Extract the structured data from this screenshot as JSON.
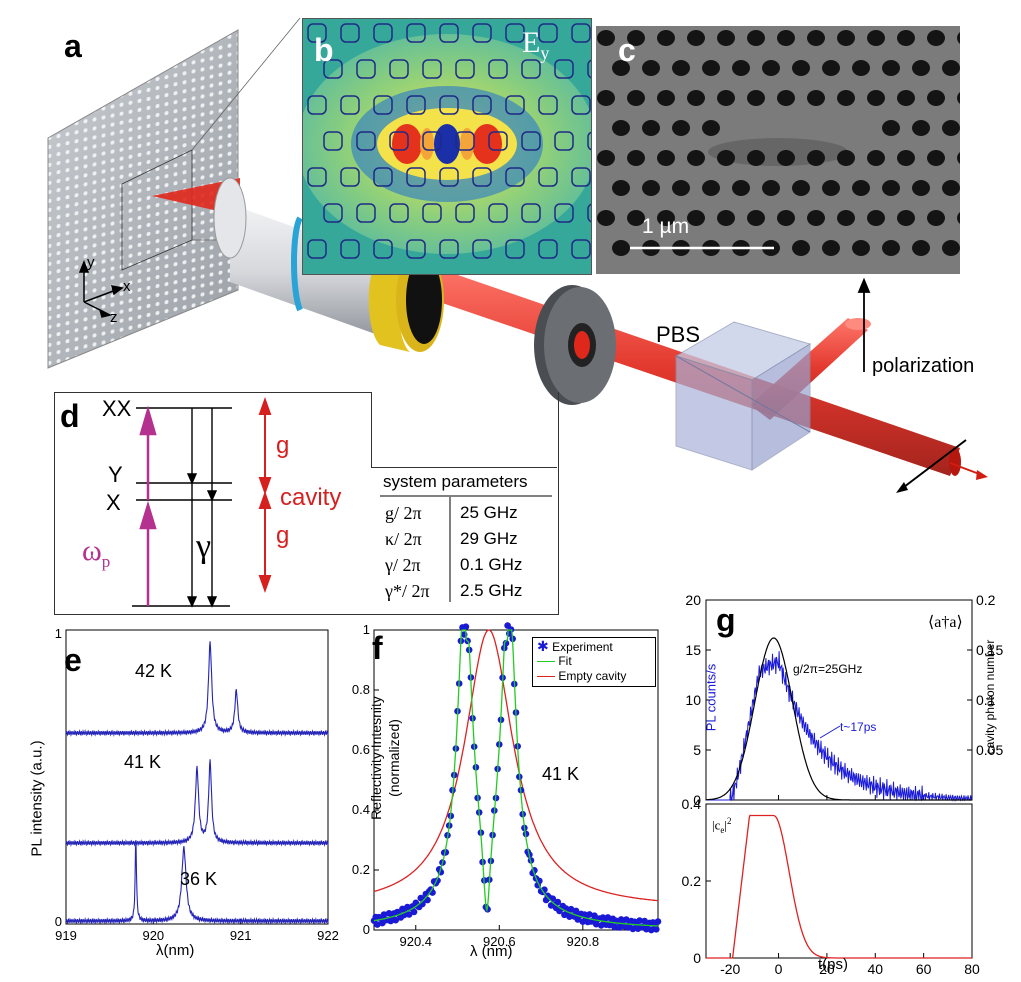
{
  "panel_labels": {
    "a": "a",
    "b": "b",
    "c": "c",
    "d": "d",
    "e": "e",
    "f": "f",
    "g": "g"
  },
  "panel_a": {
    "axis_y": "y",
    "axis_x": "x",
    "axis_z": "z",
    "pbs_label": "PBS",
    "polarization_label": "polarization"
  },
  "panel_b": {
    "field_label": "E",
    "field_subscript": "y"
  },
  "panel_c": {
    "scalebar_label": "1 µm"
  },
  "panel_d": {
    "levels": [
      "XX",
      "Y",
      "X"
    ],
    "pump_label": "ω",
    "pump_subscript": "p",
    "decay_label": "γ",
    "coupling_label": "g",
    "cavity_label": "cavity",
    "table_title": "system parameters",
    "table_rows": [
      {
        "param": "g/ 2π",
        "value": "25  GHz"
      },
      {
        "param": "κ/ 2π",
        "value": "29  GHz"
      },
      {
        "param": "γ/ 2π",
        "value": "0.1  GHz"
      },
      {
        "param": "γ*/ 2π",
        "value": "2.5 GHz"
      }
    ]
  },
  "chart_data": [
    {
      "panel": "e",
      "type": "line",
      "xlabel": "λ(nm)",
      "ylabel": "PL intensity (a.u.)",
      "xlim": [
        919,
        922
      ],
      "x_ticks": [
        "919",
        "920",
        "921",
        "922"
      ],
      "y_ticks": [
        "0",
        "1"
      ],
      "series": [
        {
          "name": "42 K",
          "peaks": [
            {
              "x": 920.65,
              "height": 0.95,
              "width": 0.045
            },
            {
              "x": 920.95,
              "height": 0.45,
              "width": 0.04
            }
          ]
        },
        {
          "name": "41 K",
          "peaks": [
            {
              "x": 920.5,
              "height": 0.78,
              "width": 0.045
            },
            {
              "x": 920.65,
              "height": 0.85,
              "width": 0.04
            }
          ]
        },
        {
          "name": "36 K",
          "peaks": [
            {
              "x": 919.8,
              "height": 0.88,
              "width": 0.018
            },
            {
              "x": 920.35,
              "height": 0.77,
              "width": 0.06
            }
          ]
        }
      ]
    },
    {
      "panel": "f",
      "type": "line",
      "xlabel": "λ (nm)",
      "ylabel_line1": "Reflectivity Intesnity",
      "ylabel_line2": "(normalized)",
      "xlim": [
        920.3,
        920.98
      ],
      "ylim": [
        0,
        1
      ],
      "x_ticks": [
        "920.4",
        "920.6",
        "920.8"
      ],
      "y_ticks": [
        "0",
        "0.2",
        "0.4",
        "0.6",
        "0.8",
        "1"
      ],
      "annotation": "41 K",
      "legend": [
        "Experiment",
        "Fit",
        "Empty cavity"
      ],
      "series": [
        {
          "name": "Experiment",
          "style": "markers",
          "color": "#1a1ad6"
        },
        {
          "name": "Fit",
          "color": "#22cc22",
          "center": 920.57,
          "split": 0.052,
          "width": 0.078,
          "dip": 0.19
        },
        {
          "name": "Empty cavity",
          "color": "#dd2222",
          "center": 920.575,
          "width": 0.079
        }
      ]
    },
    {
      "panel": "g-top",
      "type": "line",
      "xlim": [
        -30,
        80
      ],
      "ylim": [
        0,
        20
      ],
      "y_ticks_left": [
        "0",
        "5",
        "10",
        "15",
        "20"
      ],
      "y_ticks_right": [
        "0.05",
        "0.1",
        "0.15",
        "0.2"
      ],
      "ylabel_left": "PL counts/s",
      "ylabel_right": "cavity photon number",
      "right_title": "⟨a†a⟩",
      "annotations": [
        "g/2π=25GHz",
        "t~17ps"
      ],
      "series": [
        {
          "name": "PL counts",
          "color": "#1a1ad6"
        },
        {
          "name": "cavity photon number",
          "color": "#000000",
          "peak": 16.2,
          "peak_t": -2
        }
      ]
    },
    {
      "panel": "g-bottom",
      "type": "line",
      "xlim": [
        -30,
        80
      ],
      "ylim": [
        0,
        0.4
      ],
      "x_ticks": [
        "-20",
        "0",
        "20",
        "40",
        "60",
        "80"
      ],
      "y_ticks": [
        "0",
        "0.2",
        "0.4"
      ],
      "xlabel": "t(ps)",
      "ylabel": "|c",
      "ylabel_sub": "e",
      "ylabel_sup": "2",
      "series": [
        {
          "name": "|ce|^2",
          "color": "#dd2222",
          "peak": 0.37
        }
      ]
    }
  ]
}
